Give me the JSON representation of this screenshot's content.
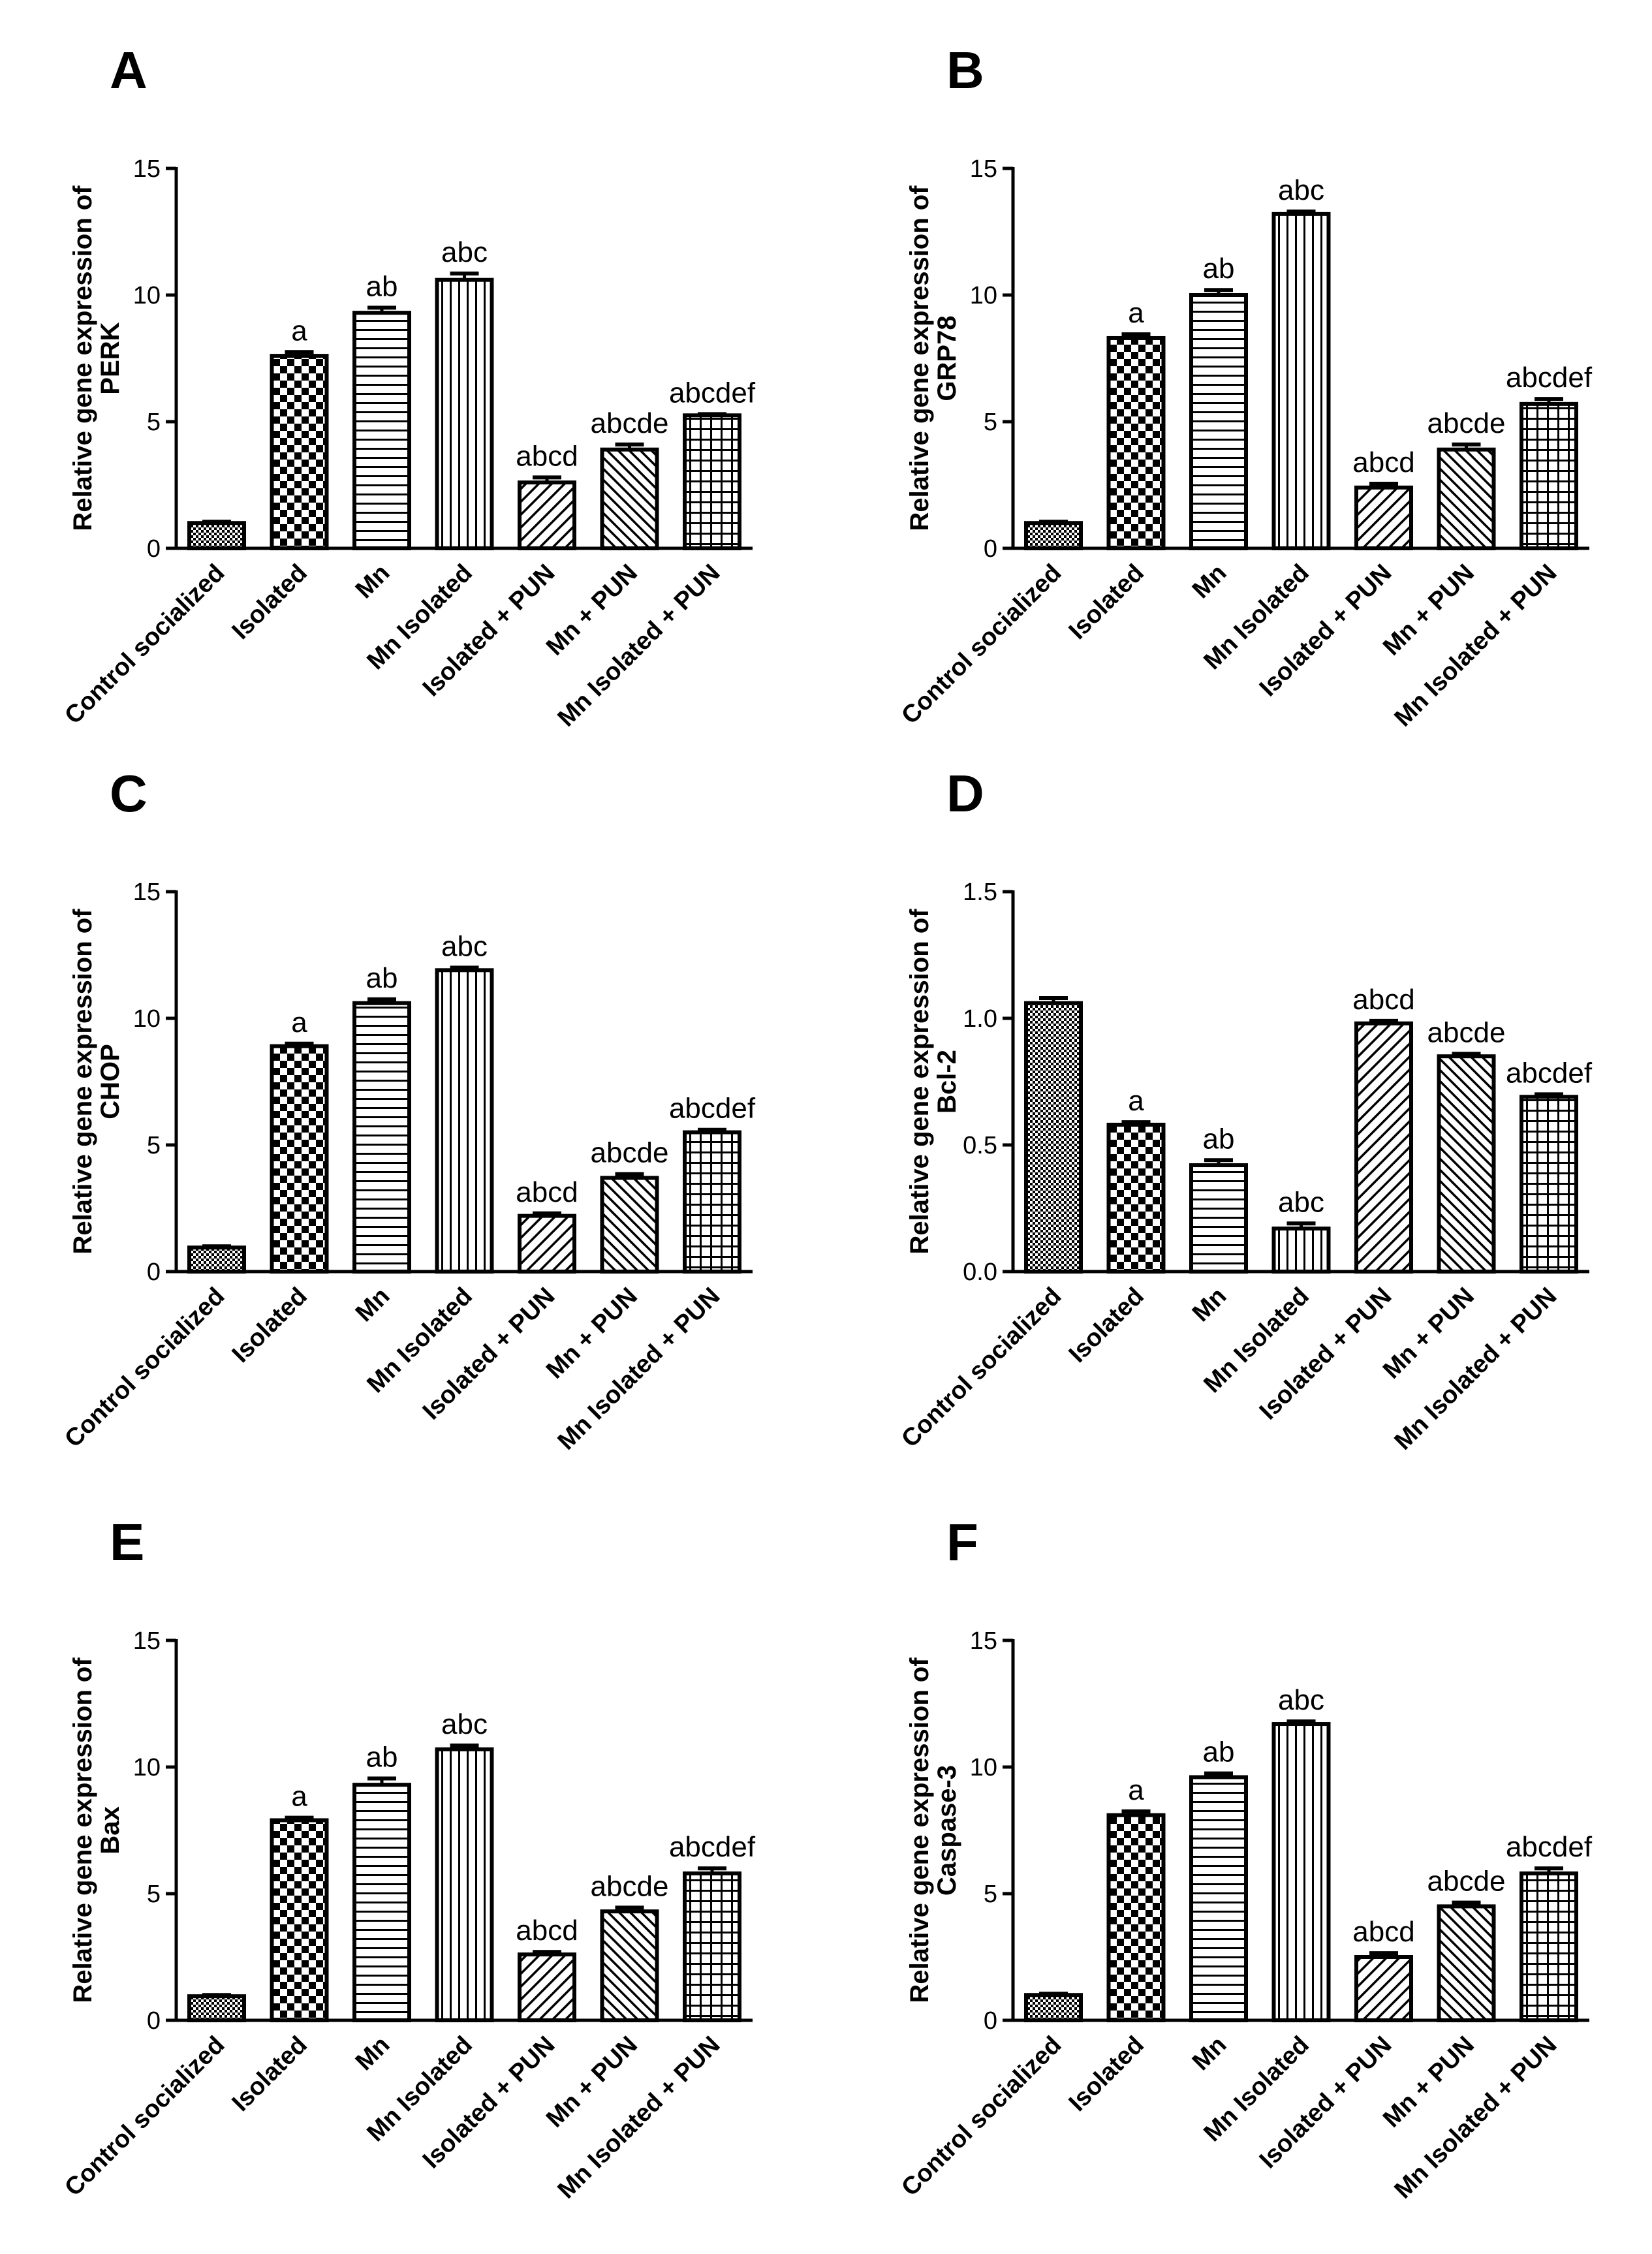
{
  "figure": {
    "categories": [
      "Control socialized",
      "Isolated",
      "Mn",
      "Mn Isolated",
      "Isolated + PUN",
      "Mn + PUN",
      "Mn Isolated + PUN"
    ]
  },
  "chart_data": [
    {
      "type": "bar",
      "panel_label": "A",
      "ylabel_line1": "Relative gene expression of",
      "ylabel_line2": "PERK",
      "ylim": [
        0,
        15
      ],
      "yticks": [
        "0",
        "5",
        "10",
        "15"
      ],
      "ytick_values": [
        0,
        5,
        10,
        15
      ],
      "categories": [
        "Control socialized",
        "Isolated",
        "Mn",
        "Mn Isolated",
        "Isolated + PUN",
        "Mn + PUN",
        "Mn Isolated + PUN"
      ],
      "values": [
        1.0,
        7.6,
        9.3,
        10.6,
        2.6,
        3.9,
        5.25
      ],
      "errors": [
        0.05,
        0.15,
        0.2,
        0.25,
        0.2,
        0.2,
        0.05
      ],
      "annotations": [
        "",
        "a",
        "ab",
        "abc",
        "abcd",
        "abcde",
        "abcdef"
      ]
    },
    {
      "type": "bar",
      "panel_label": "B",
      "ylabel_line1": "Relative gene expression of",
      "ylabel_line2": "GRP78",
      "ylim": [
        0,
        15
      ],
      "yticks": [
        "0",
        "5",
        "10",
        "15"
      ],
      "ytick_values": [
        0,
        5,
        10,
        15
      ],
      "categories": [
        "Control socialized",
        "Isolated",
        "Mn",
        "Mn Isolated",
        "Isolated + PUN",
        "Mn + PUN",
        "Mn Isolated + PUN"
      ],
      "values": [
        1.0,
        8.3,
        10.0,
        13.2,
        2.4,
        3.9,
        5.7
      ],
      "errors": [
        0.05,
        0.15,
        0.2,
        0.1,
        0.15,
        0.2,
        0.2
      ],
      "annotations": [
        "",
        "a",
        "ab",
        "abc",
        "abcd",
        "abcde",
        "abcdef"
      ]
    },
    {
      "type": "bar",
      "panel_label": "C",
      "ylabel_line1": "Relative gene expression of",
      "ylabel_line2": "CHOP",
      "ylim": [
        0,
        15
      ],
      "yticks": [
        "0",
        "5",
        "10",
        "15"
      ],
      "ytick_values": [
        0,
        5,
        10,
        15
      ],
      "categories": [
        "Control socialized",
        "Isolated",
        "Mn",
        "Mn Isolated",
        "Isolated + PUN",
        "Mn + PUN",
        "Mn Isolated + PUN"
      ],
      "values": [
        0.95,
        8.9,
        10.6,
        11.9,
        2.2,
        3.7,
        5.5
      ],
      "errors": [
        0.05,
        0.1,
        0.15,
        0.1,
        0.1,
        0.15,
        0.1
      ],
      "annotations": [
        "",
        "a",
        "ab",
        "abc",
        "abcd",
        "abcde",
        "abcdef"
      ]
    },
    {
      "type": "bar",
      "panel_label": "D",
      "ylabel_line1": "Relative gene expression of",
      "ylabel_line2": "Bcl-2",
      "ylim": [
        0,
        1.5
      ],
      "yticks": [
        "0.0",
        "0.5",
        "1.0",
        "1.5"
      ],
      "ytick_values": [
        0,
        0.5,
        1.0,
        1.5
      ],
      "categories": [
        "Control socialized",
        "Isolated",
        "Mn",
        "Mn Isolated",
        "Isolated + PUN",
        "Mn + PUN",
        "Mn Isolated + PUN"
      ],
      "values": [
        1.06,
        0.58,
        0.42,
        0.17,
        0.98,
        0.85,
        0.69
      ],
      "errors": [
        0.02,
        0.01,
        0.02,
        0.02,
        0.01,
        0.01,
        0.01
      ],
      "annotations": [
        "",
        "a",
        "ab",
        "abc",
        "abcd",
        "abcde",
        "abcdef"
      ]
    },
    {
      "type": "bar",
      "panel_label": "E",
      "ylabel_line1": "Relative gene expression of",
      "ylabel_line2": "Bax",
      "ylim": [
        0,
        15
      ],
      "yticks": [
        "0",
        "5",
        "10",
        "15"
      ],
      "ytick_values": [
        0,
        5,
        10,
        15
      ],
      "categories": [
        "Control socialized",
        "Isolated",
        "Mn",
        "Mn Isolated",
        "Isolated + PUN",
        "Mn + PUN",
        "Mn Isolated + PUN"
      ],
      "values": [
        0.95,
        7.9,
        9.3,
        10.7,
        2.6,
        4.3,
        5.8
      ],
      "errors": [
        0.05,
        0.1,
        0.25,
        0.15,
        0.1,
        0.15,
        0.2
      ],
      "annotations": [
        "",
        "a",
        "ab",
        "abc",
        "abcd",
        "abcde",
        "abcdef"
      ]
    },
    {
      "type": "bar",
      "panel_label": "F",
      "ylabel_line1": "Relative gene expression of",
      "ylabel_line2": "Caspase-3",
      "ylim": [
        0,
        15
      ],
      "yticks": [
        "0",
        "5",
        "10",
        "15"
      ],
      "ytick_values": [
        0,
        5,
        10,
        15
      ],
      "categories": [
        "Control socialized",
        "Isolated",
        "Mn",
        "Mn Isolated",
        "Isolated + PUN",
        "Mn + PUN",
        "Mn Isolated + PUN"
      ],
      "values": [
        1.0,
        8.1,
        9.6,
        11.7,
        2.5,
        4.5,
        5.8
      ],
      "errors": [
        0.05,
        0.15,
        0.15,
        0.1,
        0.15,
        0.15,
        0.2
      ],
      "annotations": [
        "",
        "a",
        "ab",
        "abc",
        "abcd",
        "abcde",
        "abcdef"
      ]
    }
  ]
}
